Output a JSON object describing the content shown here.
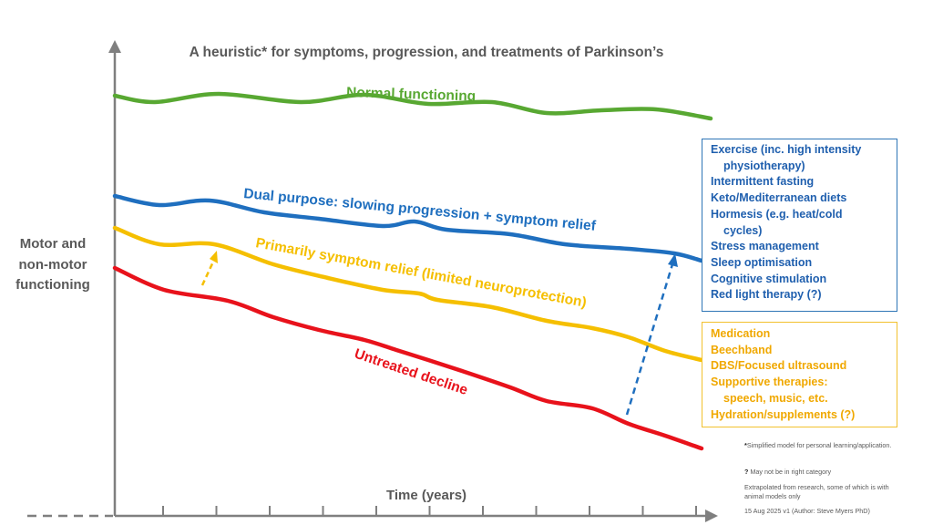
{
  "title": "A heuristic* for symptoms, progression, and treatments of Parkinson’s",
  "y_axis_label": [
    "Motor and",
    "non-motor",
    "functioning"
  ],
  "x_axis_label": "Time (years)",
  "curves": {
    "normal": {
      "label": "Normal functioning",
      "color": "#58a832"
    },
    "dual": {
      "label": "Dual purpose: slowing progression + symptom relief",
      "color": "#1f6fbf"
    },
    "symptom": {
      "label": "Primarily symptom relief (limited neuroprotection)",
      "color": "#f5bf00"
    },
    "untreated": {
      "label": "Untreated decline",
      "color": "#e8121b"
    }
  },
  "lifestyle_box": {
    "items": [
      "Exercise (inc. high intensity",
      "physiotherapy)",
      "Intermittent fasting",
      "Keto/Mediterranean diets",
      "Hormesis (e.g. heat/cold",
      "cycles)",
      "Stress management",
      "Sleep optimisation",
      "Cognitive stimulation",
      "Red light therapy (?)"
    ]
  },
  "medical_box": {
    "items": [
      "Medication",
      "Beechband",
      "DBS/Focused ultrasound",
      "Supportive therapies:",
      "speech, music, etc.",
      "Hydration/supplements (?)"
    ]
  },
  "notes": {
    "asterisk_mark": "*",
    "asterisk_text": "Simplified model for personal learning/application.",
    "question_mark": "?",
    "question_text": "May not be in right category",
    "research_text": "Extrapolated from research, some of which is with animal models only",
    "version_text": "15 Aug 2025 v1 (Author: Steve Myers PhD)"
  }
}
